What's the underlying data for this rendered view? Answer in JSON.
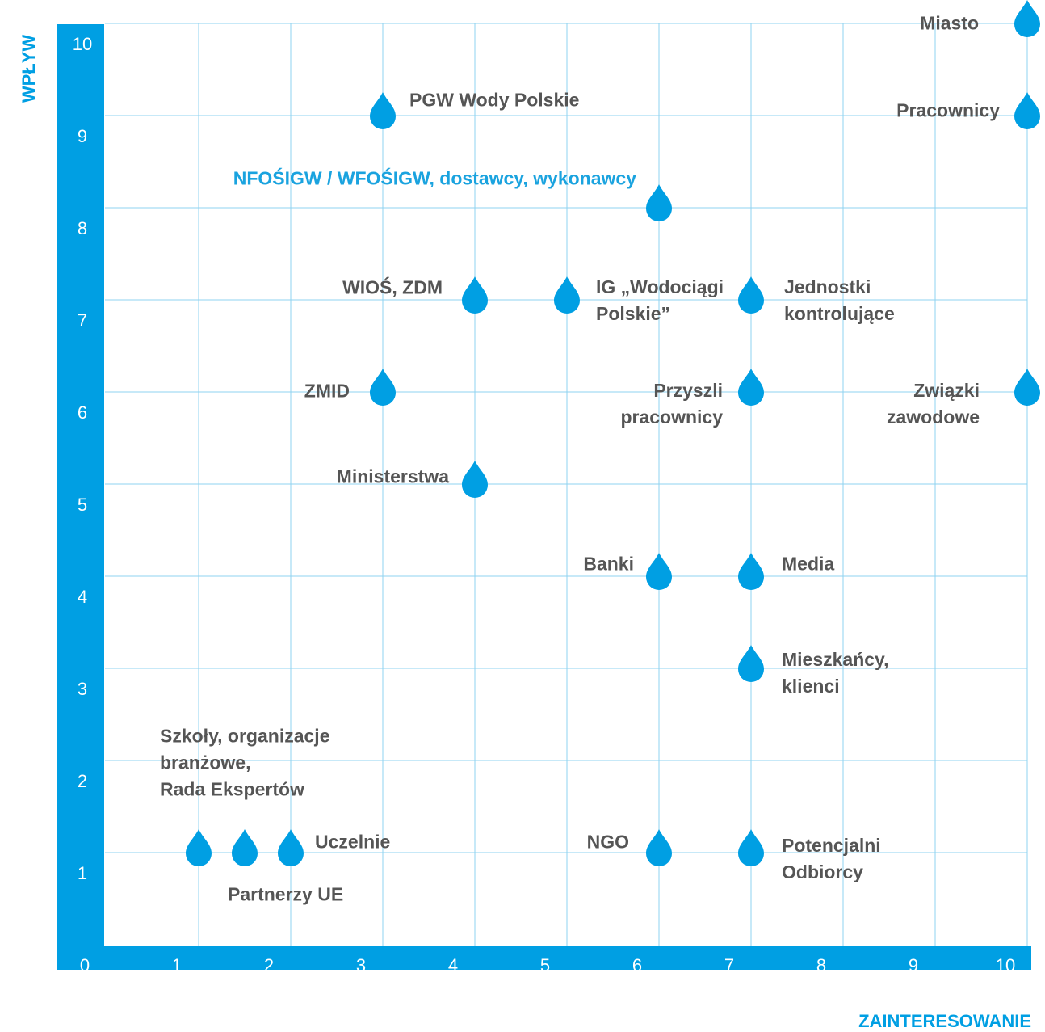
{
  "chart_data": {
    "type": "scatter",
    "xlabel": "ZAINTERESOWANIE",
    "ylabel": "WPŁYW",
    "xlim": [
      0,
      10
    ],
    "ylim": [
      0,
      10
    ],
    "xticks": [
      0,
      1,
      2,
      3,
      4,
      5,
      6,
      7,
      8,
      9,
      10
    ],
    "yticks": [
      1,
      2,
      3,
      4,
      5,
      6,
      7,
      8,
      9,
      10
    ],
    "grid": true,
    "color": "#009fe3",
    "axis_color": "#009fe3",
    "grid_color": "#8fd3f0",
    "x": [
      10,
      10,
      3,
      6,
      4,
      5,
      7,
      3,
      7,
      10,
      4,
      6,
      7,
      7,
      1,
      1.5,
      2,
      6,
      7
    ],
    "values": [
      10,
      9,
      9,
      8,
      7,
      7,
      7,
      6,
      6,
      6,
      5,
      4,
      4,
      3,
      1,
      1,
      1,
      1,
      1
    ],
    "labels": [
      "Miasto",
      "Pracownicy",
      "PGW Wody Polskie",
      "NFOŚIGW / WFOŚIGW, dostawcy, wykonawcy",
      "WIOŚ, ZDM",
      "IG „Wodociągi\nPolskie”",
      "Jednostki\nkontrolujące",
      "ZMID",
      "Przyszli\npracownicy",
      "Związki\nzawodowe",
      "Ministerstwa",
      "Banki",
      "Media",
      "Mieszkańcy,\nklienci",
      "Szkoły, organizacje\nbranżowe,\nRada Ekspertów",
      "Partnerzy UE",
      "Uczelnie",
      "NGO",
      "Potencjalni\nOdbiorcy"
    ],
    "label_colors": [
      "#555555",
      "#555555",
      "#555555",
      "#1aa3df",
      "#555555",
      "#555555",
      "#555555",
      "#555555",
      "#555555",
      "#555555",
      "#555555",
      "#555555",
      "#555555",
      "#555555",
      "#555555",
      "#555555",
      "#555555",
      "#555555",
      "#555555"
    ]
  }
}
